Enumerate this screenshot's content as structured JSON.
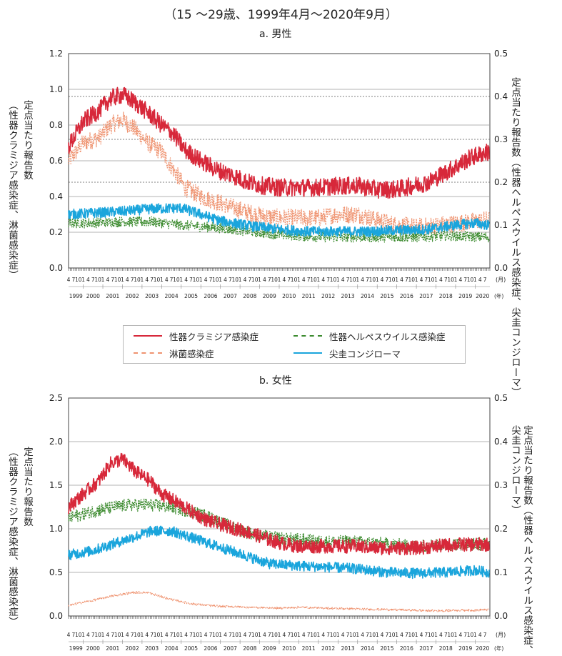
{
  "page_title": "（15 ～29歳、1999年4月～2020年9月）",
  "colors": {
    "chlamydia": "#d7283a",
    "gonorrhea": "#ef9370",
    "herpes": "#3b8a2e",
    "condyloma": "#1aa5dc"
  },
  "legend": {
    "chlamydia": "性器クラミジア感染症",
    "gonorrhea": "淋菌感染症",
    "herpes": "性器ヘルペスウイルス感染症",
    "condyloma": "尖圭コンジローマ"
  },
  "chart_data": [
    {
      "type": "line",
      "title": "a. 男性",
      "ylabel_left": [
        "定点当たり報告数",
        "（性器クラミジア感染症、淋菌感染症）"
      ],
      "ylabel_right": [
        "定点当たり報告数",
        "（性器ヘルペスウイルス感染症、",
        "尖圭コンジローマ）"
      ],
      "ylim_left": [
        0,
        1.2
      ],
      "yticks_left": [
        "0.0",
        "0.2",
        "0.4",
        "0.6",
        "0.8",
        "1.0",
        "1.2"
      ],
      "ylim_right": [
        0,
        0.5
      ],
      "yticks_right": [
        "0.0",
        "0.1",
        "0.2",
        "0.3",
        "0.4",
        "0.5"
      ],
      "month_ticks": [
        "4",
        "7",
        "10",
        "1"
      ],
      "month_unit": "(月)",
      "years": [
        "1999",
        "2000",
        "2001",
        "2002",
        "2003",
        "2004",
        "2005",
        "2006",
        "2007",
        "2008",
        "2009",
        "2010",
        "2011",
        "2012",
        "2013",
        "2014",
        "2015",
        "2016",
        "2017",
        "2018",
        "2019",
        "2020"
      ],
      "year_unit": "(年)",
      "x_range": [
        "1999-04",
        "2020-09"
      ],
      "series": [
        {
          "name": "性器クラミジア感染症",
          "axis": "left",
          "style": "solid",
          "anchors": [
            [
              1999.25,
              0.68
            ],
            [
              2000.0,
              0.82
            ],
            [
              2000.8,
              0.88
            ],
            [
              2001.4,
              0.95
            ],
            [
              2002.0,
              0.97
            ],
            [
              2002.6,
              0.93
            ],
            [
              2003.3,
              0.87
            ],
            [
              2004.0,
              0.8
            ],
            [
              2004.6,
              0.75
            ],
            [
              2005.2,
              0.66
            ],
            [
              2006.0,
              0.6
            ],
            [
              2006.8,
              0.55
            ],
            [
              2007.6,
              0.52
            ],
            [
              2008.4,
              0.48
            ],
            [
              2009.2,
              0.46
            ],
            [
              2010.0,
              0.45
            ],
            [
              2011.0,
              0.45
            ],
            [
              2012.0,
              0.45
            ],
            [
              2013.0,
              0.46
            ],
            [
              2014.0,
              0.46
            ],
            [
              2015.0,
              0.44
            ],
            [
              2016.0,
              0.44
            ],
            [
              2016.8,
              0.46
            ],
            [
              2017.6,
              0.48
            ],
            [
              2018.4,
              0.53
            ],
            [
              2019.2,
              0.58
            ],
            [
              2019.8,
              0.62
            ],
            [
              2020.67,
              0.65
            ]
          ]
        },
        {
          "name": "淋菌感染症",
          "axis": "left",
          "style": "dashed",
          "anchors": [
            [
              1999.25,
              0.6
            ],
            [
              2000.0,
              0.7
            ],
            [
              2000.8,
              0.73
            ],
            [
              2001.4,
              0.8
            ],
            [
              2002.0,
              0.83
            ],
            [
              2002.6,
              0.78
            ],
            [
              2003.3,
              0.7
            ],
            [
              2004.0,
              0.65
            ],
            [
              2004.6,
              0.55
            ],
            [
              2005.2,
              0.45
            ],
            [
              2006.0,
              0.4
            ],
            [
              2006.8,
              0.37
            ],
            [
              2007.6,
              0.34
            ],
            [
              2008.4,
              0.31
            ],
            [
              2009.2,
              0.29
            ],
            [
              2010.0,
              0.28
            ],
            [
              2011.0,
              0.28
            ],
            [
              2012.0,
              0.28
            ],
            [
              2013.0,
              0.3
            ],
            [
              2014.0,
              0.3
            ],
            [
              2015.0,
              0.27
            ],
            [
              2016.0,
              0.24
            ],
            [
              2017.0,
              0.23
            ],
            [
              2018.0,
              0.24
            ],
            [
              2019.0,
              0.25
            ],
            [
              2020.67,
              0.27
            ]
          ]
        },
        {
          "name": "性器ヘルペスウイルス感染症",
          "axis": "right",
          "style": "dashed",
          "anchors": [
            [
              1999.25,
              0.105
            ],
            [
              2000.5,
              0.105
            ],
            [
              2002.0,
              0.108
            ],
            [
              2003.5,
              0.108
            ],
            [
              2005.0,
              0.1
            ],
            [
              2006.5,
              0.095
            ],
            [
              2008.0,
              0.088
            ],
            [
              2009.5,
              0.08
            ],
            [
              2011.0,
              0.075
            ],
            [
              2012.5,
              0.072
            ],
            [
              2014.0,
              0.072
            ],
            [
              2015.5,
              0.072
            ],
            [
              2017.0,
              0.072
            ],
            [
              2018.5,
              0.075
            ],
            [
              2020.67,
              0.072
            ]
          ]
        },
        {
          "name": "尖圭コンジローマ",
          "axis": "right",
          "style": "solid",
          "anchors": [
            [
              1999.25,
              0.125
            ],
            [
              2000.5,
              0.128
            ],
            [
              2002.0,
              0.132
            ],
            [
              2003.5,
              0.138
            ],
            [
              2005.0,
              0.14
            ],
            [
              2005.8,
              0.128
            ],
            [
              2007.0,
              0.11
            ],
            [
              2008.5,
              0.098
            ],
            [
              2010.0,
              0.09
            ],
            [
              2011.5,
              0.085
            ],
            [
              2013.0,
              0.085
            ],
            [
              2014.5,
              0.085
            ],
            [
              2016.0,
              0.088
            ],
            [
              2017.5,
              0.09
            ],
            [
              2019.0,
              0.1
            ],
            [
              2020.0,
              0.105
            ],
            [
              2020.67,
              0.1
            ]
          ]
        }
      ]
    },
    {
      "type": "line",
      "title": "b. 女性",
      "ylabel_left": [
        "定点当たり報告数",
        "（性器クラミジア感染症、淋菌感染症）"
      ],
      "ylabel_right": [
        "定点当たり報告数",
        "（性器ヘルペスウイルス感染症、",
        "尖圭コンジローマ）"
      ],
      "ylim_left": [
        0,
        2.5
      ],
      "yticks_left": [
        "0.0",
        "0.5",
        "1.0",
        "1.5",
        "2.0",
        "2.5"
      ],
      "ylim_right": [
        0,
        0.5
      ],
      "yticks_right": [
        "0.0",
        "0.1",
        "0.2",
        "0.3",
        "0.4",
        "0.5"
      ],
      "month_ticks": [
        "4",
        "7",
        "10",
        "1"
      ],
      "month_unit": "(月)",
      "years": [
        "1999",
        "2000",
        "2001",
        "2002",
        "2003",
        "2004",
        "2005",
        "2006",
        "2007",
        "2008",
        "2009",
        "2010",
        "2011",
        "2012",
        "2013",
        "2014",
        "2015",
        "2016",
        "2017",
        "2018",
        "2019",
        "2020"
      ],
      "year_unit": "(年)",
      "x_range": [
        "1999-04",
        "2020-09"
      ],
      "series": [
        {
          "name": "性器クラミジア感染症",
          "axis": "left",
          "style": "solid",
          "anchors": [
            [
              1999.25,
              1.25
            ],
            [
              2000.0,
              1.4
            ],
            [
              2000.8,
              1.55
            ],
            [
              2001.4,
              1.75
            ],
            [
              2002.0,
              1.8
            ],
            [
              2002.7,
              1.65
            ],
            [
              2003.4,
              1.55
            ],
            [
              2004.0,
              1.4
            ],
            [
              2004.8,
              1.3
            ],
            [
              2005.5,
              1.2
            ],
            [
              2006.3,
              1.1
            ],
            [
              2007.0,
              1.05
            ],
            [
              2007.8,
              1.0
            ],
            [
              2008.6,
              0.95
            ],
            [
              2009.4,
              0.88
            ],
            [
              2010.2,
              0.83
            ],
            [
              2011.0,
              0.8
            ],
            [
              2012.0,
              0.8
            ],
            [
              2013.0,
              0.8
            ],
            [
              2014.0,
              0.8
            ],
            [
              2015.0,
              0.78
            ],
            [
              2016.0,
              0.78
            ],
            [
              2017.0,
              0.78
            ],
            [
              2018.0,
              0.8
            ],
            [
              2019.0,
              0.82
            ],
            [
              2020.67,
              0.82
            ]
          ]
        },
        {
          "name": "淋菌感染症",
          "axis": "left",
          "style": "dashed",
          "anchors": [
            [
              1999.25,
              0.12
            ],
            [
              2000.5,
              0.18
            ],
            [
              2001.5,
              0.23
            ],
            [
              2002.5,
              0.27
            ],
            [
              2003.3,
              0.27
            ],
            [
              2004.3,
              0.2
            ],
            [
              2005.5,
              0.14
            ],
            [
              2007.0,
              0.11
            ],
            [
              2008.5,
              0.1
            ],
            [
              2010.0,
              0.09
            ],
            [
              2011.0,
              0.1
            ],
            [
              2012.5,
              0.09
            ],
            [
              2014.0,
              0.08
            ],
            [
              2016.0,
              0.07
            ],
            [
              2018.0,
              0.06
            ],
            [
              2020.67,
              0.07
            ]
          ]
        },
        {
          "name": "性器ヘルペスウイルス感染症",
          "axis": "right",
          "style": "dashed",
          "anchors": [
            [
              1999.25,
              0.225
            ],
            [
              2000.5,
              0.24
            ],
            [
              2001.5,
              0.25
            ],
            [
              2002.5,
              0.255
            ],
            [
              2003.5,
              0.255
            ],
            [
              2004.5,
              0.25
            ],
            [
              2005.5,
              0.24
            ],
            [
              2006.5,
              0.225
            ],
            [
              2007.5,
              0.205
            ],
            [
              2008.5,
              0.19
            ],
            [
              2009.5,
              0.18
            ],
            [
              2011.0,
              0.175
            ],
            [
              2012.5,
              0.17
            ],
            [
              2014.0,
              0.17
            ],
            [
              2015.5,
              0.165
            ],
            [
              2017.0,
              0.16
            ],
            [
              2018.5,
              0.165
            ],
            [
              2020.67,
              0.165
            ]
          ]
        },
        {
          "name": "尖圭コンジローマ",
          "axis": "right",
          "style": "solid",
          "anchors": [
            [
              1999.25,
              0.14
            ],
            [
              2000.5,
              0.15
            ],
            [
              2001.5,
              0.165
            ],
            [
              2002.5,
              0.18
            ],
            [
              2003.5,
              0.195
            ],
            [
              2004.5,
              0.195
            ],
            [
              2005.5,
              0.18
            ],
            [
              2006.5,
              0.165
            ],
            [
              2007.5,
              0.15
            ],
            [
              2008.5,
              0.135
            ],
            [
              2009.5,
              0.12
            ],
            [
              2011.0,
              0.115
            ],
            [
              2012.5,
              0.112
            ],
            [
              2014.0,
              0.108
            ],
            [
              2015.5,
              0.1
            ],
            [
              2017.0,
              0.098
            ],
            [
              2018.5,
              0.1
            ],
            [
              2020.0,
              0.105
            ],
            [
              2020.67,
              0.1
            ]
          ]
        }
      ]
    }
  ]
}
